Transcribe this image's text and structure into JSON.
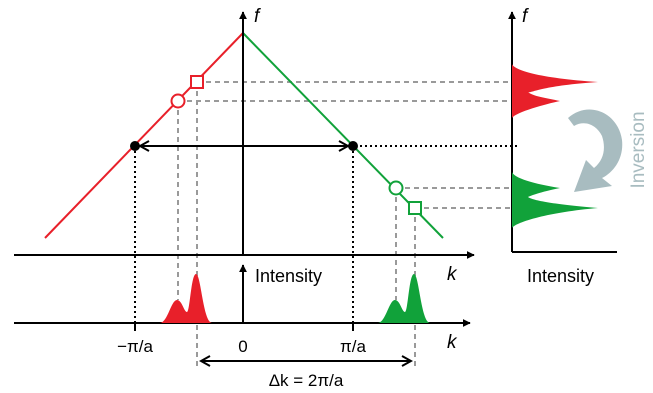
{
  "labels": {
    "f_main": "f",
    "f_right": "f",
    "k_upper": "k",
    "k_lower": "k",
    "intensity_center": "Intensity",
    "intensity_right": "Intensity",
    "inversion": "Inversion",
    "tick_neg": "−π/a",
    "tick_zero": "0",
    "tick_pos": "π/a",
    "delta_k": "Δk = 2π/a"
  },
  "colors": {
    "red": "#e8202a",
    "green": "#11a23a",
    "axis": "#000000",
    "guide": "#9a9a9a",
    "arrow": "#a8bcc0"
  }
}
